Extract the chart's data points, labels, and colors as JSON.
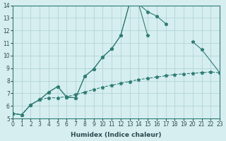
{
  "xlabel": "Humidex (Indice chaleur)",
  "bg_color": "#d6eef0",
  "line_color": "#2d7d74",
  "grid_color": "#b0d4d8",
  "xlim": [
    0,
    23
  ],
  "ylim": [
    5,
    14
  ],
  "yticks": [
    5,
    6,
    7,
    8,
    9,
    10,
    11,
    12,
    13,
    14
  ],
  "xticks": [
    0,
    1,
    2,
    3,
    4,
    5,
    6,
    7,
    8,
    9,
    10,
    11,
    12,
    13,
    14,
    15,
    16,
    17,
    18,
    19,
    20,
    21,
    22,
    23
  ],
  "line1_x": [
    0,
    1,
    2,
    3,
    4,
    5,
    6,
    7,
    8,
    9,
    10,
    11,
    12,
    13,
    14,
    15,
    16,
    17
  ],
  "line1_y": [
    5.4,
    5.3,
    6.1,
    6.5,
    7.1,
    7.55,
    6.7,
    6.65,
    8.35,
    8.95,
    9.9,
    10.55,
    11.6,
    14.2,
    14.1,
    13.5,
    13.15,
    12.55
  ],
  "line2_segs": [
    {
      "x": [
        0,
        1,
        2,
        3,
        4,
        5,
        6,
        7,
        8,
        9,
        10,
        11,
        12,
        13,
        14,
        15
      ],
      "y": [
        5.4,
        5.3,
        6.1,
        6.5,
        7.1,
        7.55,
        6.7,
        6.65,
        8.35,
        8.95,
        9.9,
        10.55,
        11.6,
        14.2,
        14.1,
        11.6
      ]
    },
    {
      "x": [
        20,
        21,
        23
      ],
      "y": [
        11.1,
        10.5,
        8.65
      ]
    }
  ],
  "line3_x": [
    0,
    1,
    2,
    3,
    4,
    5,
    6,
    7,
    8,
    9,
    10,
    11,
    12,
    13,
    14,
    15,
    16,
    17,
    18,
    19,
    20,
    21,
    22,
    23
  ],
  "line3_y": [
    5.4,
    5.3,
    6.1,
    6.5,
    6.65,
    6.65,
    6.75,
    6.9,
    7.1,
    7.3,
    7.5,
    7.65,
    7.8,
    7.95,
    8.1,
    8.2,
    8.3,
    8.4,
    8.5,
    8.55,
    8.6,
    8.65,
    8.7,
    8.65
  ]
}
